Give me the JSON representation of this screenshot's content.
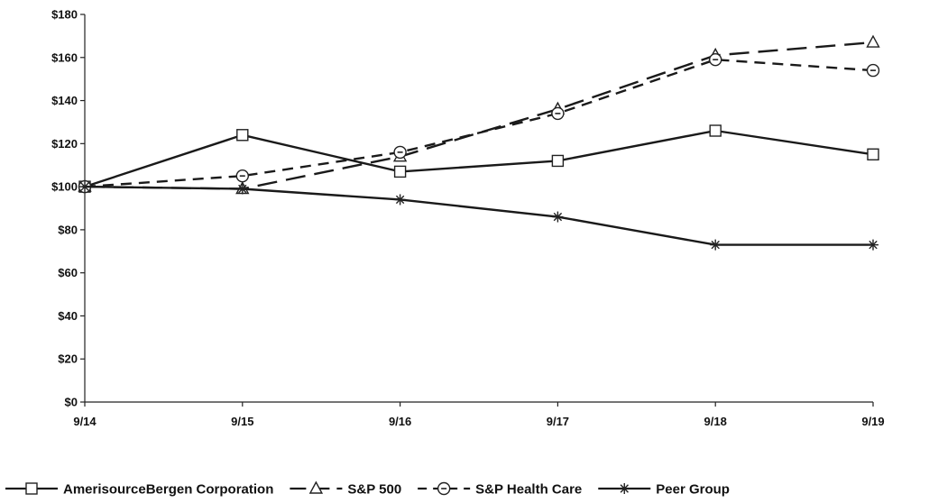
{
  "chart_data": {
    "type": "line",
    "categories": [
      "9/14",
      "9/15",
      "9/16",
      "9/17",
      "9/18",
      "9/19"
    ],
    "ylim": [
      0,
      180
    ],
    "yticks": [
      0,
      20,
      40,
      60,
      80,
      100,
      120,
      140,
      160,
      180
    ],
    "ytick_labels": [
      "$0",
      "$20",
      "$40",
      "$60",
      "$80",
      "$100",
      "$120",
      "$140",
      "$160",
      "$180"
    ],
    "legend_position": "bottom",
    "grid": false,
    "series": [
      {
        "name": "AmerisourceBergen Corporation",
        "values": [
          100,
          124,
          107,
          112,
          126,
          115
        ],
        "marker": "square",
        "line": "solid"
      },
      {
        "name": "S&P 500",
        "values": [
          100,
          99,
          114,
          136,
          161,
          167
        ],
        "marker": "triangle",
        "line": "long-dash"
      },
      {
        "name": "S&P Health Care",
        "values": [
          100,
          105,
          116,
          134,
          159,
          154
        ],
        "marker": "circle-dot",
        "line": "dash"
      },
      {
        "name": "Peer Group",
        "values": [
          100,
          99,
          94,
          86,
          73,
          73
        ],
        "marker": "asterisk",
        "line": "solid"
      }
    ]
  }
}
